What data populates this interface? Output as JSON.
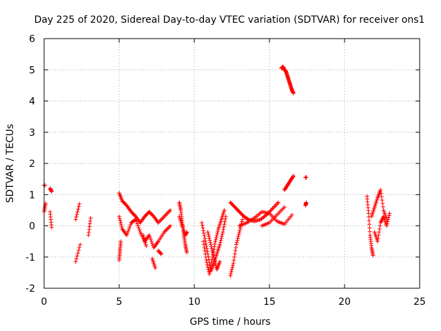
{
  "chart_data": {
    "type": "scatter",
    "title": "Day 225 of 2020, Sidereal Day-to-day VTEC variation (SDTVAR) for receiver ons1",
    "xlabel": "GPS time / hours",
    "ylabel": "SDTVAR / TECUs",
    "xlim": [
      0,
      25
    ],
    "ylim": [
      -2,
      6
    ],
    "xticks": [
      0,
      5,
      10,
      15,
      20,
      25
    ],
    "yticks": [
      -2,
      -1,
      0,
      1,
      2,
      3,
      4,
      5,
      6
    ],
    "grid": true,
    "marker": "plus",
    "color": "#ff0000",
    "segments": [
      {
        "x": [
          0.0,
          0.1
        ],
        "y": [
          0.45,
          0.72
        ]
      },
      {
        "x": [
          0.0,
          0.05
        ],
        "y": [
          1.3,
          1.3
        ]
      },
      {
        "x": [
          0.4,
          0.5
        ],
        "y": [
          1.2,
          1.1
        ]
      },
      {
        "x": [
          0.4,
          0.5
        ],
        "y": [
          0.45,
          -0.05
        ]
      },
      {
        "x": [
          2.1,
          2.35
        ],
        "y": [
          0.2,
          0.7
        ]
      },
      {
        "x": [
          2.1,
          2.4
        ],
        "y": [
          -1.15,
          -0.6
        ]
      },
      {
        "x": [
          2.95,
          3.1
        ],
        "y": [
          -0.3,
          0.25
        ]
      },
      {
        "x": [
          5.0,
          5.2,
          5.5,
          5.8,
          6.1,
          6.4,
          6.7,
          7.0,
          7.3,
          7.6,
          8.0,
          8.4
        ],
        "y": [
          1.05,
          0.8,
          0.65,
          0.45,
          0.3,
          0.1,
          0.3,
          0.45,
          0.3,
          0.1,
          0.3,
          0.5
        ]
      },
      {
        "x": [
          5.0,
          5.2,
          5.5,
          5.8,
          6.1,
          6.4,
          6.7,
          7.0,
          7.3,
          7.6,
          8.0,
          8.4
        ],
        "y": [
          0.3,
          -0.1,
          -0.3,
          0.1,
          0.2,
          -0.2,
          -0.5,
          -0.3,
          -0.7,
          -0.5,
          -0.2,
          0.0
        ]
      },
      {
        "x": [
          5.0,
          5.05,
          5.1
        ],
        "y": [
          -1.1,
          -0.8,
          -0.5
        ]
      },
      {
        "x": [
          6.6,
          6.8
        ],
        "y": [
          -0.3,
          -0.65
        ]
      },
      {
        "x": [
          7.2,
          7.4
        ],
        "y": [
          -1.05,
          -1.35
        ]
      },
      {
        "x": [
          7.6,
          7.8
        ],
        "y": [
          -0.8,
          -0.9
        ]
      },
      {
        "x": [
          9.0,
          9.1,
          9.2,
          9.3,
          9.4,
          9.5
        ],
        "y": [
          0.75,
          0.5,
          0.1,
          -0.3,
          -0.6,
          -0.85
        ]
      },
      {
        "x": [
          9.0,
          9.2,
          9.4,
          9.5
        ],
        "y": [
          0.3,
          0.0,
          -0.3,
          -0.2
        ]
      },
      {
        "x": [
          10.5,
          10.7,
          10.9,
          11.1,
          11.3,
          11.5,
          11.7,
          11.9,
          12.1
        ],
        "y": [
          0.1,
          -0.4,
          -0.9,
          -1.45,
          -1.2,
          -0.9,
          -0.6,
          -0.2,
          0.3
        ]
      },
      {
        "x": [
          10.6,
          10.8,
          11.0,
          11.2,
          11.4,
          11.6,
          11.8,
          12.0
        ],
        "y": [
          -0.5,
          -1.1,
          -1.55,
          -1.0,
          -0.5,
          -0.1,
          0.2,
          0.5
        ]
      },
      {
        "x": [
          10.9,
          11.1,
          11.3,
          11.5,
          11.7
        ],
        "y": [
          -0.2,
          -0.6,
          -1.0,
          -1.4,
          -1.15
        ]
      },
      {
        "x": [
          12.4,
          12.6,
          12.8,
          13.0,
          13.2
        ],
        "y": [
          -1.6,
          -1.2,
          -0.6,
          -0.2,
          0.2
        ]
      },
      {
        "x": [
          12.4,
          12.7,
          13.0,
          13.3,
          13.6,
          14.0,
          14.4,
          14.8,
          15.2,
          15.6
        ],
        "y": [
          0.75,
          0.6,
          0.45,
          0.3,
          0.2,
          0.15,
          0.2,
          0.35,
          0.55,
          0.75
        ]
      },
      {
        "x": [
          13.0,
          13.5,
          14.0,
          14.5,
          15.0,
          15.5,
          16.0,
          16.5
        ],
        "y": [
          0.0,
          0.1,
          0.25,
          0.45,
          0.4,
          0.15,
          0.05,
          0.35
        ]
      },
      {
        "x": [
          14.5,
          15.0,
          15.5,
          16.0
        ],
        "y": [
          0.0,
          0.1,
          0.35,
          0.6
        ]
      },
      {
        "x": [
          15.8,
          15.9,
          16.0,
          16.1,
          16.2,
          16.3,
          16.4,
          16.5,
          16.6
        ],
        "y": [
          5.05,
          5.1,
          5.0,
          4.95,
          4.8,
          4.65,
          4.5,
          4.35,
          4.25
        ]
      },
      {
        "x": [
          16.0,
          16.2,
          16.4,
          16.6
        ],
        "y": [
          1.15,
          1.3,
          1.45,
          1.6
        ]
      },
      {
        "x": [
          17.4,
          17.45
        ],
        "y": [
          1.55,
          1.55
        ]
      },
      {
        "x": [
          17.4,
          17.45
        ],
        "y": [
          0.65,
          0.75
        ]
      },
      {
        "x": [
          21.5,
          21.6,
          21.7,
          21.8,
          21.9
        ],
        "y": [
          0.95,
          0.4,
          -0.3,
          -0.7,
          -0.95
        ]
      },
      {
        "x": [
          21.8,
          22.0,
          22.2,
          22.4,
          22.6,
          22.8
        ],
        "y": [
          0.3,
          0.6,
          0.9,
          1.15,
          0.5,
          0.2
        ]
      },
      {
        "x": [
          22.0,
          22.2,
          22.4,
          22.6,
          22.8,
          23.0
        ],
        "y": [
          -0.2,
          -0.5,
          0.1,
          0.3,
          0.0,
          0.4
        ]
      }
    ]
  }
}
